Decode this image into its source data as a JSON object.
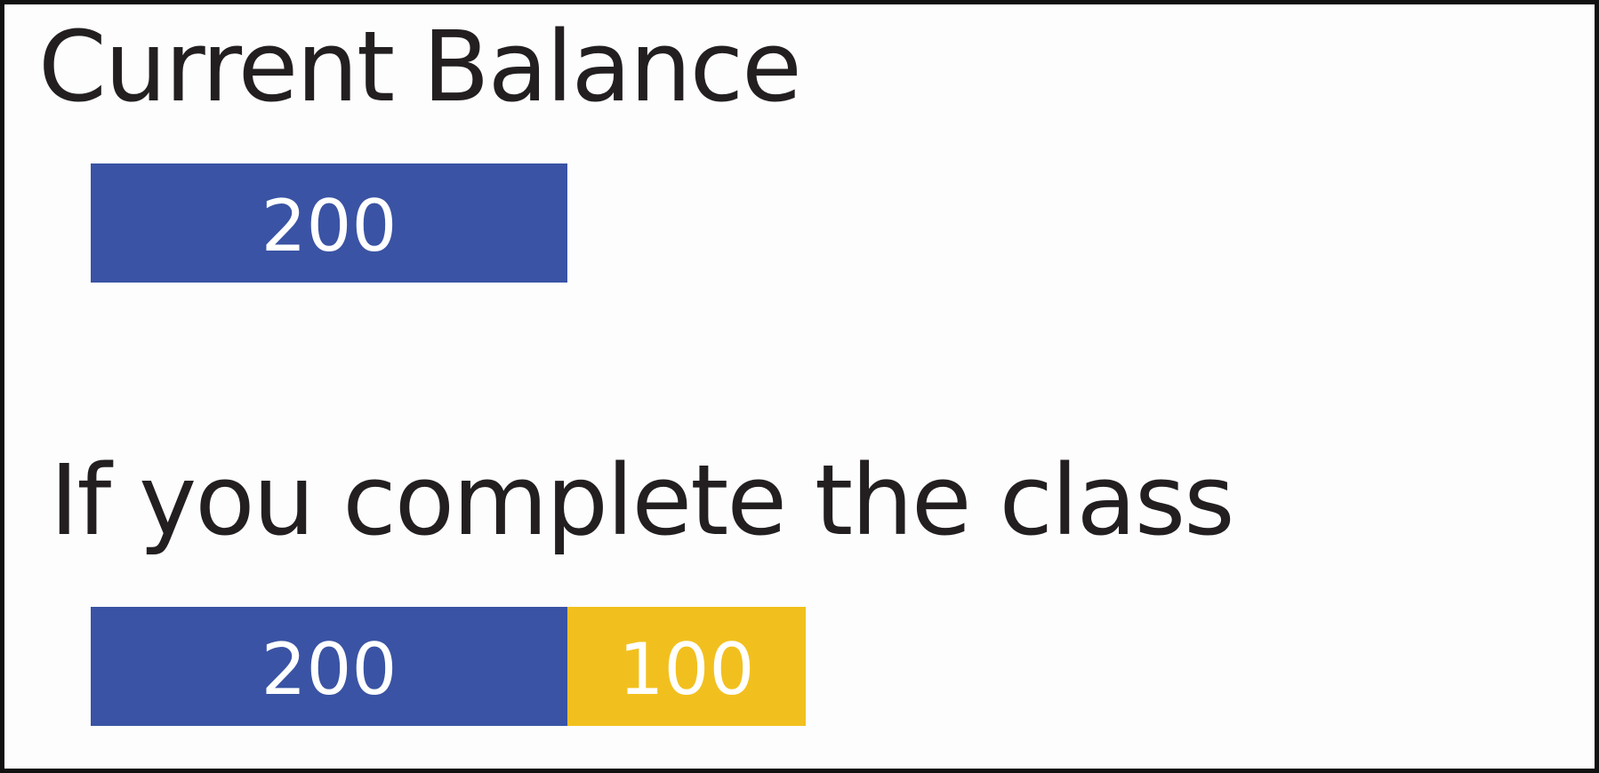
{
  "chart_data": [
    {
      "type": "bar",
      "orientation": "horizontal-stacked",
      "title": "Current Balance",
      "unit_scale_per_value": "shared",
      "segments": [
        {
          "value": 200,
          "label": "200",
          "color": "#3a53a4"
        }
      ]
    },
    {
      "type": "bar",
      "orientation": "horizontal-stacked",
      "title": "If you complete the class",
      "segments": [
        {
          "value": 200,
          "label": "200",
          "color": "#3a53a4"
        },
        {
          "value": 100,
          "label": "100",
          "color": "#f2c01e"
        }
      ]
    }
  ],
  "colors": {
    "balance": "#3a53a4",
    "bonus": "#f2c01e",
    "text": "#231f20",
    "frame": "#111111"
  }
}
